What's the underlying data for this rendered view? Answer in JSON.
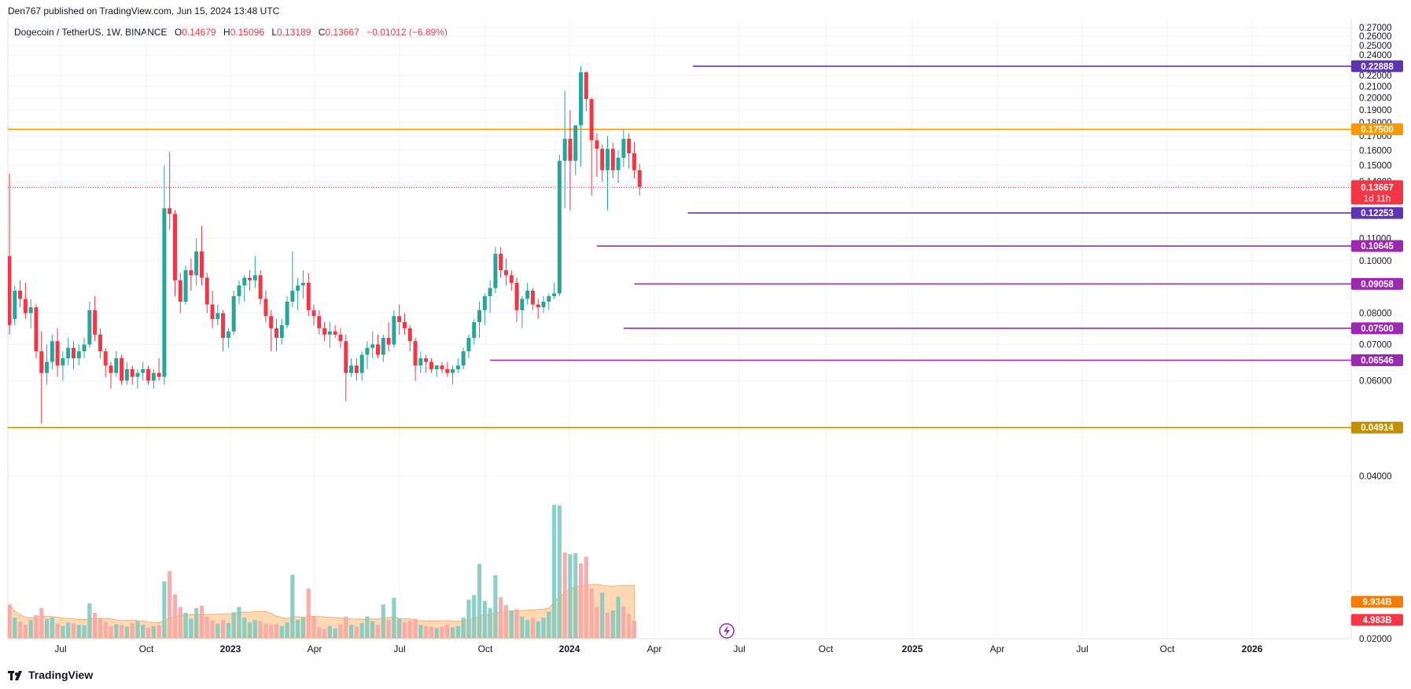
{
  "published": "Den767 published on TradingView.com, Jun 15, 2024 13:48 UTC",
  "legend": {
    "symbol": "Dogecoin / TetherUS, 1W, BINANCE",
    "o_label": "O",
    "o": "0.14679",
    "h_label": "H",
    "h": "0.15096",
    "l_label": "L",
    "l": "0.13189",
    "c_label": "C",
    "c": "0.13667",
    "change": "−0.01012 (−6.89%)"
  },
  "footer": {
    "brand": "TradingView"
  },
  "colors": {
    "up": "#26a69a",
    "down": "#f23645",
    "orange": "#ff9800",
    "purple": "#7e3fbf",
    "gold": "#c29000",
    "volume_ma": "#ffcc99"
  },
  "chart_data": {
    "type": "candlestick",
    "symbol": "DOGEUSDT",
    "timeframe": "1W",
    "ylim": [
      0.02,
      0.28
    ],
    "y_scale": "log",
    "y_ticks": [
      "0.27000",
      "0.26000",
      "0.25000",
      "0.24000",
      "0.22000",
      "0.21000",
      "0.20000",
      "0.19000",
      "0.18000",
      "0.17000",
      "0.16000",
      "0.15000",
      "0.14000",
      "0.11000",
      "0.10000",
      "0.08000",
      "0.07000",
      "0.06000",
      "0.04000",
      "0.02000"
    ],
    "x_ticks": [
      "Jul",
      "Oct",
      "2023",
      "Apr",
      "Jul",
      "Oct",
      "2024",
      "Apr",
      "Jul",
      "Oct",
      "2025",
      "Apr",
      "Jul",
      "Oct",
      "2026"
    ],
    "bold_x_ticks": [
      "2023",
      "2024",
      "2025",
      "2026"
    ],
    "last_price": {
      "value": 0.13667,
      "label": "0.13667",
      "countdown": "1d 11h"
    },
    "levels": [
      {
        "value": 0.22888,
        "label": "0.22888",
        "color": "#5e35b1",
        "start": 128
      },
      {
        "value": 0.175,
        "label": "0.17500",
        "color": "#ff9800",
        "start": 0
      },
      {
        "value": 0.12253,
        "label": "0.12253",
        "color": "#5e35b1",
        "start": 127
      },
      {
        "value": 0.10645,
        "label": "0.10645",
        "color": "#9c27b0",
        "start": 110
      },
      {
        "value": 0.09058,
        "label": "0.09058",
        "color": "#9c27b0",
        "start": 117
      },
      {
        "value": 0.075,
        "label": "0.07500",
        "color": "#9c27b0",
        "start": 115
      },
      {
        "value": 0.06546,
        "label": "0.06546",
        "color": "#9c27b0",
        "start": 90
      },
      {
        "value": 0.04914,
        "label": "0.04914",
        "color": "#c29000",
        "start": 0
      }
    ],
    "volume_labels": [
      {
        "label": "9.934B",
        "color": "#f57c00"
      },
      {
        "label": "4.983B",
        "color": "#f23645"
      }
    ],
    "candles": [
      [
        0.102,
        0.145,
        0.073,
        0.076
      ],
      [
        0.078,
        0.09,
        0.076,
        0.088
      ],
      [
        0.088,
        0.092,
        0.082,
        0.085
      ],
      [
        0.085,
        0.091,
        0.078,
        0.08
      ],
      [
        0.08,
        0.085,
        0.075,
        0.082
      ],
      [
        0.082,
        0.083,
        0.066,
        0.068
      ],
      [
        0.068,
        0.074,
        0.05,
        0.062
      ],
      [
        0.062,
        0.07,
        0.059,
        0.065
      ],
      [
        0.065,
        0.073,
        0.063,
        0.071
      ],
      [
        0.071,
        0.075,
        0.061,
        0.064
      ],
      [
        0.064,
        0.068,
        0.06,
        0.066
      ],
      [
        0.066,
        0.072,
        0.064,
        0.069
      ],
      [
        0.069,
        0.071,
        0.063,
        0.066
      ],
      [
        0.066,
        0.07,
        0.064,
        0.068
      ],
      [
        0.068,
        0.072,
        0.066,
        0.07
      ],
      [
        0.07,
        0.084,
        0.069,
        0.081
      ],
      [
        0.081,
        0.086,
        0.071,
        0.073
      ],
      [
        0.073,
        0.075,
        0.066,
        0.068
      ],
      [
        0.068,
        0.069,
        0.061,
        0.064
      ],
      [
        0.064,
        0.065,
        0.058,
        0.062
      ],
      [
        0.062,
        0.068,
        0.061,
        0.066
      ],
      [
        0.066,
        0.067,
        0.059,
        0.06
      ],
      [
        0.06,
        0.065,
        0.059,
        0.063
      ],
      [
        0.063,
        0.064,
        0.059,
        0.061
      ],
      [
        0.061,
        0.063,
        0.058,
        0.062
      ],
      [
        0.062,
        0.065,
        0.06,
        0.063
      ],
      [
        0.063,
        0.064,
        0.059,
        0.06
      ],
      [
        0.06,
        0.063,
        0.058,
        0.062
      ],
      [
        0.062,
        0.066,
        0.06,
        0.061
      ],
      [
        0.061,
        0.15,
        0.059,
        0.125
      ],
      [
        0.125,
        0.159,
        0.114,
        0.122
      ],
      [
        0.122,
        0.124,
        0.086,
        0.092
      ],
      [
        0.092,
        0.095,
        0.08,
        0.084
      ],
      [
        0.084,
        0.098,
        0.083,
        0.096
      ],
      [
        0.096,
        0.101,
        0.088,
        0.094
      ],
      [
        0.094,
        0.11,
        0.09,
        0.104
      ],
      [
        0.104,
        0.116,
        0.09,
        0.093
      ],
      [
        0.093,
        0.095,
        0.08,
        0.083
      ],
      [
        0.083,
        0.088,
        0.075,
        0.078
      ],
      [
        0.078,
        0.083,
        0.076,
        0.08
      ],
      [
        0.08,
        0.081,
        0.068,
        0.072
      ],
      [
        0.072,
        0.075,
        0.069,
        0.074
      ],
      [
        0.074,
        0.088,
        0.073,
        0.086
      ],
      [
        0.086,
        0.092,
        0.083,
        0.09
      ],
      [
        0.09,
        0.094,
        0.084,
        0.093
      ],
      [
        0.093,
        0.096,
        0.088,
        0.092
      ],
      [
        0.092,
        0.102,
        0.089,
        0.094
      ],
      [
        0.094,
        0.096,
        0.083,
        0.085
      ],
      [
        0.085,
        0.088,
        0.077,
        0.079
      ],
      [
        0.079,
        0.081,
        0.068,
        0.075
      ],
      [
        0.075,
        0.078,
        0.068,
        0.072
      ],
      [
        0.072,
        0.078,
        0.07,
        0.076
      ],
      [
        0.076,
        0.086,
        0.075,
        0.084
      ],
      [
        0.084,
        0.104,
        0.082,
        0.088
      ],
      [
        0.088,
        0.093,
        0.081,
        0.09
      ],
      [
        0.09,
        0.096,
        0.085,
        0.091
      ],
      [
        0.091,
        0.095,
        0.079,
        0.081
      ],
      [
        0.081,
        0.083,
        0.076,
        0.079
      ],
      [
        0.079,
        0.081,
        0.073,
        0.075
      ],
      [
        0.075,
        0.077,
        0.071,
        0.073
      ],
      [
        0.073,
        0.077,
        0.069,
        0.074
      ],
      [
        0.074,
        0.076,
        0.072,
        0.073
      ],
      [
        0.073,
        0.075,
        0.069,
        0.071
      ],
      [
        0.071,
        0.073,
        0.055,
        0.062
      ],
      [
        0.062,
        0.066,
        0.061,
        0.064
      ],
      [
        0.064,
        0.066,
        0.06,
        0.062
      ],
      [
        0.062,
        0.068,
        0.06,
        0.067
      ],
      [
        0.067,
        0.071,
        0.063,
        0.069
      ],
      [
        0.069,
        0.074,
        0.066,
        0.07
      ],
      [
        0.07,
        0.073,
        0.066,
        0.067
      ],
      [
        0.067,
        0.073,
        0.065,
        0.072
      ],
      [
        0.072,
        0.077,
        0.068,
        0.07
      ],
      [
        0.07,
        0.081,
        0.069,
        0.079
      ],
      [
        0.079,
        0.083,
        0.073,
        0.077
      ],
      [
        0.077,
        0.08,
        0.073,
        0.075
      ],
      [
        0.075,
        0.076,
        0.068,
        0.071
      ],
      [
        0.071,
        0.072,
        0.06,
        0.064
      ],
      [
        0.064,
        0.068,
        0.062,
        0.066
      ],
      [
        0.066,
        0.067,
        0.062,
        0.065
      ],
      [
        0.065,
        0.066,
        0.062,
        0.063
      ],
      [
        0.063,
        0.064,
        0.061,
        0.064
      ],
      [
        0.064,
        0.065,
        0.062,
        0.063
      ],
      [
        0.063,
        0.065,
        0.061,
        0.062
      ],
      [
        0.062,
        0.064,
        0.059,
        0.063
      ],
      [
        0.063,
        0.066,
        0.062,
        0.064
      ],
      [
        0.064,
        0.069,
        0.063,
        0.068
      ],
      [
        0.068,
        0.073,
        0.066,
        0.072
      ],
      [
        0.072,
        0.078,
        0.07,
        0.077
      ],
      [
        0.077,
        0.084,
        0.072,
        0.081
      ],
      [
        0.081,
        0.087,
        0.076,
        0.086
      ],
      [
        0.086,
        0.092,
        0.08,
        0.089
      ],
      [
        0.089,
        0.106,
        0.087,
        0.103
      ],
      [
        0.103,
        0.106,
        0.093,
        0.096
      ],
      [
        0.096,
        0.101,
        0.09,
        0.094
      ],
      [
        0.094,
        0.096,
        0.088,
        0.091
      ],
      [
        0.091,
        0.093,
        0.077,
        0.081
      ],
      [
        0.081,
        0.086,
        0.075,
        0.085
      ],
      [
        0.085,
        0.091,
        0.083,
        0.088
      ],
      [
        0.088,
        0.089,
        0.081,
        0.083
      ],
      [
        0.083,
        0.085,
        0.078,
        0.082
      ],
      [
        0.082,
        0.086,
        0.08,
        0.084
      ],
      [
        0.084,
        0.087,
        0.081,
        0.086
      ],
      [
        0.086,
        0.091,
        0.085,
        0.087
      ],
      [
        0.087,
        0.157,
        0.086,
        0.153
      ],
      [
        0.153,
        0.206,
        0.125,
        0.168
      ],
      [
        0.168,
        0.19,
        0.124,
        0.153
      ],
      [
        0.153,
        0.178,
        0.144,
        0.178
      ],
      [
        0.178,
        0.229,
        0.149,
        0.223
      ],
      [
        0.223,
        0.224,
        0.189,
        0.199
      ],
      [
        0.199,
        0.2,
        0.132,
        0.167
      ],
      [
        0.167,
        0.172,
        0.143,
        0.161
      ],
      [
        0.161,
        0.164,
        0.14,
        0.147
      ],
      [
        0.147,
        0.17,
        0.124,
        0.161
      ],
      [
        0.161,
        0.165,
        0.142,
        0.147
      ],
      [
        0.147,
        0.16,
        0.139,
        0.155
      ],
      [
        0.155,
        0.175,
        0.149,
        0.168
      ],
      [
        0.168,
        0.172,
        0.148,
        0.158
      ],
      [
        0.158,
        0.166,
        0.142,
        0.147
      ],
      [
        0.147,
        0.151,
        0.132,
        0.137
      ]
    ],
    "volume": [
      [
        5.6,
        "d"
      ],
      [
        3.4,
        "u"
      ],
      [
        2.7,
        "d"
      ],
      [
        2.2,
        "d"
      ],
      [
        3.0,
        "u"
      ],
      [
        3.8,
        "d"
      ],
      [
        5.0,
        "d"
      ],
      [
        3.2,
        "u"
      ],
      [
        3.4,
        "u"
      ],
      [
        2.4,
        "d"
      ],
      [
        2.0,
        "u"
      ],
      [
        2.6,
        "u"
      ],
      [
        2.4,
        "d"
      ],
      [
        2.2,
        "u"
      ],
      [
        2.1,
        "u"
      ],
      [
        5.8,
        "u"
      ],
      [
        4.2,
        "d"
      ],
      [
        3.2,
        "d"
      ],
      [
        2.6,
        "d"
      ],
      [
        2.0,
        "d"
      ],
      [
        2.3,
        "u"
      ],
      [
        2.1,
        "d"
      ],
      [
        1.9,
        "u"
      ],
      [
        2.5,
        "d"
      ],
      [
        2.8,
        "u"
      ],
      [
        2.2,
        "u"
      ],
      [
        1.7,
        "d"
      ],
      [
        2.0,
        "u"
      ],
      [
        2.1,
        "d"
      ],
      [
        9.5,
        "u"
      ],
      [
        11.2,
        "d"
      ],
      [
        7.3,
        "d"
      ],
      [
        5.2,
        "d"
      ],
      [
        4.2,
        "u"
      ],
      [
        3.2,
        "u"
      ],
      [
        5.0,
        "u"
      ],
      [
        5.4,
        "d"
      ],
      [
        3.6,
        "d"
      ],
      [
        2.9,
        "d"
      ],
      [
        2.4,
        "u"
      ],
      [
        3.0,
        "d"
      ],
      [
        2.5,
        "u"
      ],
      [
        4.3,
        "u"
      ],
      [
        5.2,
        "u"
      ],
      [
        3.4,
        "u"
      ],
      [
        2.6,
        "u"
      ],
      [
        3.0,
        "u"
      ],
      [
        2.8,
        "d"
      ],
      [
        2.4,
        "d"
      ],
      [
        2.2,
        "d"
      ],
      [
        2.3,
        "d"
      ],
      [
        2.0,
        "u"
      ],
      [
        2.6,
        "u"
      ],
      [
        10.6,
        "u"
      ],
      [
        3.0,
        "u"
      ],
      [
        3.4,
        "u"
      ],
      [
        8.3,
        "d"
      ],
      [
        3.6,
        "d"
      ],
      [
        1.8,
        "d"
      ],
      [
        1.5,
        "d"
      ],
      [
        2.0,
        "u"
      ],
      [
        1.6,
        "u"
      ],
      [
        2.3,
        "d"
      ],
      [
        3.6,
        "d"
      ],
      [
        2.2,
        "u"
      ],
      [
        1.9,
        "d"
      ],
      [
        2.5,
        "u"
      ],
      [
        3.6,
        "u"
      ],
      [
        2.8,
        "u"
      ],
      [
        2.2,
        "d"
      ],
      [
        5.6,
        "u"
      ],
      [
        3.0,
        "d"
      ],
      [
        6.7,
        "u"
      ],
      [
        3.2,
        "u"
      ],
      [
        2.6,
        "d"
      ],
      [
        2.9,
        "d"
      ],
      [
        3.2,
        "d"
      ],
      [
        2.2,
        "u"
      ],
      [
        2.0,
        "d"
      ],
      [
        1.9,
        "d"
      ],
      [
        1.7,
        "u"
      ],
      [
        1.9,
        "d"
      ],
      [
        2.2,
        "d"
      ],
      [
        1.8,
        "u"
      ],
      [
        2.0,
        "u"
      ],
      [
        3.4,
        "u"
      ],
      [
        6.4,
        "u"
      ],
      [
        7.2,
        "u"
      ],
      [
        12.4,
        "u"
      ],
      [
        6.2,
        "u"
      ],
      [
        5.0,
        "u"
      ],
      [
        10.5,
        "u"
      ],
      [
        6.8,
        "d"
      ],
      [
        5.5,
        "d"
      ],
      [
        4.6,
        "u"
      ],
      [
        4.8,
        "d"
      ],
      [
        3.6,
        "u"
      ],
      [
        3.0,
        "u"
      ],
      [
        3.4,
        "d"
      ],
      [
        2.8,
        "u"
      ],
      [
        3.4,
        "u"
      ],
      [
        4.4,
        "u"
      ],
      [
        22.3,
        "u"
      ],
      [
        22.2,
        "u"
      ],
      [
        14.3,
        "d"
      ],
      [
        14.0,
        "u"
      ],
      [
        14.2,
        "u"
      ],
      [
        12.5,
        "d"
      ],
      [
        13.6,
        "d"
      ],
      [
        8.3,
        "d"
      ],
      [
        5.2,
        "d"
      ],
      [
        7.6,
        "u"
      ],
      [
        4.2,
        "d"
      ],
      [
        4.6,
        "u"
      ],
      [
        6.9,
        "u"
      ],
      [
        5.3,
        "d"
      ],
      [
        4.0,
        "d"
      ],
      [
        2.9,
        "d"
      ]
    ]
  }
}
